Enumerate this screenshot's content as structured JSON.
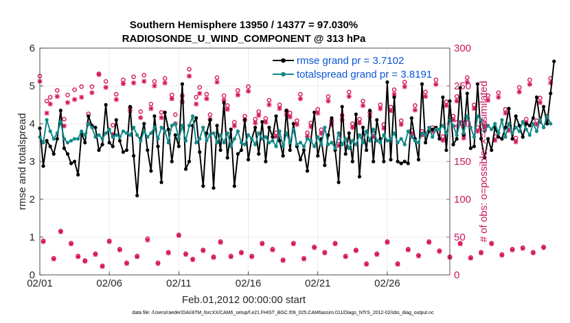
{
  "colors": {
    "rmse": "#000000",
    "totalspread": "#138888",
    "obs": "#d4145a",
    "legend_text": "#0a55d6",
    "right_axis": "#c8155f"
  },
  "footnote": "data file: /Users/raeder/DAI/ATM_forcXX/CAM6_setup/f.e21.FHIST_BGC.f09_025.CAM6assim.011/Diags_NTrS_2012-02/obs_diag_output.nc",
  "chart_data": {
    "type": "line",
    "title": "Southern Hemisphere 13950 / 14377 = 97.030%",
    "subtitle": "RADIOSONDE_U_WIND_COMPONENT @ 313 hPa",
    "xlabel": "Feb.01,2012 00:00:00 start",
    "ylabel": "rmse and totalspread",
    "y2label": "# of obs: o=possible; ×=assimilated",
    "xlim": [
      0,
      29.5
    ],
    "ylim": [
      0,
      6
    ],
    "y2lim": [
      0,
      300
    ],
    "x_ticks": [
      0,
      5,
      10,
      15,
      20,
      25
    ],
    "x_tick_labels": [
      "02/01",
      "02/06",
      "02/11",
      "02/16",
      "02/21",
      "02/26"
    ],
    "y_ticks": [
      0,
      1,
      2,
      3,
      4,
      5,
      6
    ],
    "y_tick_labels": [
      "0",
      "1",
      "2",
      "3",
      "4",
      "5",
      "6"
    ],
    "y2_ticks": [
      0,
      50,
      100,
      150,
      200,
      250,
      300
    ],
    "y2_tick_labels": [
      "0",
      "50",
      "100",
      "150",
      "200",
      "250",
      "300"
    ],
    "legend": [
      "rmse grand pr = 3.7102",
      "totalspread grand pr = 3.8191"
    ],
    "step_days": 0.25,
    "series": [
      {
        "name": "rmse",
        "axis": "left",
        "values": [
          3.88,
          2.88,
          3.55,
          3.4,
          3.2,
          3.6,
          4.35,
          3.35,
          3.2,
          2.95,
          3.0,
          2.65,
          3.75,
          3.5,
          4.2,
          3.95,
          3.9,
          3.3,
          3.45,
          4.5,
          3.5,
          3.4,
          4.1,
          3.55,
          3.25,
          3.3,
          4.45,
          3.15,
          2.1,
          3.6,
          4.0,
          3.3,
          2.75,
          4.2,
          3.4,
          2.45,
          4.3,
          3.85,
          3.0,
          3.7,
          3.4,
          5.05,
          2.8,
          3.0,
          3.95,
          4.15,
          3.25,
          2.35,
          3.75,
          4.1,
          2.3,
          3.95,
          3.3,
          4.55,
          3.1,
          3.85,
          2.35,
          3.2,
          3.3,
          4.1,
          3.05,
          3.6,
          3.9,
          3.2,
          4.05,
          3.0,
          3.9,
          3.65,
          4.2,
          3.55,
          3.15,
          4.35,
          3.3,
          4.0,
          3.4,
          3.05,
          3.3,
          2.75,
          3.55,
          4.3,
          3.15,
          3.6,
          2.9,
          3.7,
          4.15,
          3.3,
          2.45,
          4.45,
          3.2,
          3.75,
          3.0,
          4.25,
          2.6,
          3.9,
          3.3,
          4.35,
          3.0,
          4.1,
          3.6,
          3.0,
          5.1,
          3.05,
          4.7,
          3.0,
          2.95,
          3.0,
          2.95,
          4.15,
          3.6,
          3.05,
          5.05,
          3.5,
          3.8,
          3.85,
          3.9,
          3.6,
          4.7,
          3.3,
          4.6,
          3.45,
          3.6,
          4.95,
          3.7,
          4.8,
          3.35,
          3.4,
          5.05,
          3.6,
          3.1,
          3.6,
          3.3,
          3.9,
          3.65,
          3.6,
          3.9,
          4.4,
          3.6,
          4.2,
          3.95,
          3.65,
          4.0,
          3.95,
          4.15,
          4.7,
          4.05,
          4.45,
          4.0,
          4.8,
          5.65
        ]
      },
      {
        "name": "totalspread",
        "axis": "left",
        "values": [
          3.65,
          3.5,
          4.1,
          3.8,
          3.6,
          3.75,
          4.05,
          3.6,
          3.5,
          3.55,
          3.6,
          3.6,
          3.8,
          3.7,
          4.0,
          3.9,
          3.65,
          3.7,
          3.6,
          3.75,
          3.85,
          3.65,
          3.7,
          3.65,
          3.8,
          3.75,
          3.7,
          3.9,
          3.7,
          3.55,
          3.8,
          3.65,
          3.75,
          3.9,
          3.6,
          3.9,
          3.8,
          3.5,
          3.95,
          4.0,
          3.6,
          3.95,
          3.55,
          3.95,
          4.2,
          3.5,
          3.6,
          3.9,
          3.55,
          3.7,
          3.75,
          3.5,
          3.7,
          3.5,
          3.75,
          3.4,
          3.6,
          3.8,
          3.5,
          3.45,
          3.7,
          3.6,
          3.45,
          3.75,
          3.6,
          3.65,
          3.5,
          3.55,
          3.4,
          3.8,
          3.4,
          3.75,
          3.5,
          3.85,
          3.45,
          3.5,
          3.4,
          3.6,
          3.55,
          3.4,
          3.65,
          3.45,
          3.9,
          3.45,
          3.5,
          3.35,
          3.75,
          3.45,
          3.6,
          3.35,
          3.55,
          3.45,
          3.7,
          3.5,
          3.8,
          3.55,
          3.85,
          3.55,
          3.5,
          3.7,
          3.55,
          3.6,
          3.75,
          3.5,
          3.6,
          3.45,
          3.8,
          3.65,
          3.55,
          3.5,
          3.75,
          3.7,
          3.9,
          3.65,
          3.85,
          3.85,
          3.95,
          3.75,
          4.1,
          3.95,
          3.7,
          4.05,
          3.75,
          4.2,
          3.9,
          3.65,
          4.2,
          4.1,
          3.8,
          3.95,
          3.85,
          4.0,
          3.75,
          4.1,
          3.65,
          4.0,
          3.75,
          3.9,
          3.8,
          4.05,
          3.85,
          3.7,
          4.0,
          3.8,
          4.1,
          3.9,
          4.2,
          4.0
        ]
      },
      {
        "name": "possible",
        "axis": "right",
        "values": [
          263,
          45,
          230,
          235,
          22,
          244,
          58,
          206,
          238,
          42,
          245,
          25,
          249,
          19,
          213,
          249,
          28,
          266,
          12,
          256,
          45,
          198,
          239,
          34,
          258,
          16,
          221,
          262,
          25,
          216,
          264,
          48,
          226,
          256,
          16,
          215,
          260,
          30,
          238,
          212,
          53,
          237,
          28,
          272,
          21,
          235,
          248,
          33,
          239,
          212,
          24,
          261,
          44,
          237,
          224,
          25,
          202,
          244,
          30,
          210,
          249,
          25,
          206,
          216,
          42,
          207,
          231,
          34,
          188,
          225,
          20,
          217,
          214,
          42,
          204,
          239,
          22,
          188,
          201,
          37,
          219,
          192,
          30,
          236,
          204,
          42,
          177,
          211,
          25,
          242,
          200,
          33,
          206,
          230,
          15,
          215,
          188,
          28,
          225,
          199,
          44,
          222,
          245,
          15,
          204,
          255,
          34,
          191,
          224,
          26,
          190,
          242,
          44,
          195,
          258,
          32,
          183,
          229,
          24,
          210,
          236,
          42,
          186,
          261,
          23,
          225,
          195,
          30,
          201,
          237,
          42,
          183,
          241,
          27,
          219,
          196,
          34,
          181,
          248,
          36,
          206,
          258,
          30,
          204,
          234,
          37,
          210,
          260
        ]
      },
      {
        "name": "assimilated",
        "axis": "right",
        "values": [
          256,
          44,
          214,
          226,
          21,
          236,
          57,
          197,
          228,
          41,
          232,
          24,
          235,
          18,
          200,
          241,
          27,
          265,
          11,
          248,
          44,
          186,
          232,
          33,
          253,
          15,
          217,
          254,
          24,
          208,
          256,
          46,
          220,
          250,
          15,
          208,
          254,
          29,
          233,
          200,
          52,
          229,
          27,
          263,
          20,
          226,
          240,
          32,
          233,
          206,
          23,
          255,
          43,
          231,
          219,
          24,
          197,
          238,
          29,
          205,
          243,
          24,
          201,
          211,
          41,
          202,
          225,
          33,
          183,
          220,
          19,
          212,
          209,
          41,
          199,
          233,
          21,
          183,
          196,
          36,
          214,
          187,
          29,
          230,
          199,
          41,
          171,
          205,
          24,
          236,
          195,
          32,
          201,
          224,
          14,
          210,
          183,
          27,
          220,
          194,
          43,
          217,
          239,
          14,
          199,
          249,
          33,
          186,
          218,
          25,
          185,
          236,
          43,
          190,
          252,
          31,
          178,
          224,
          23,
          205,
          230,
          41,
          181,
          255,
          22,
          220,
          190,
          29,
          196,
          231,
          41,
          178,
          235,
          26,
          214,
          191,
          33,
          176,
          242,
          35,
          201,
          252,
          29,
          199,
          228,
          36,
          205,
          254
        ]
      }
    ]
  }
}
